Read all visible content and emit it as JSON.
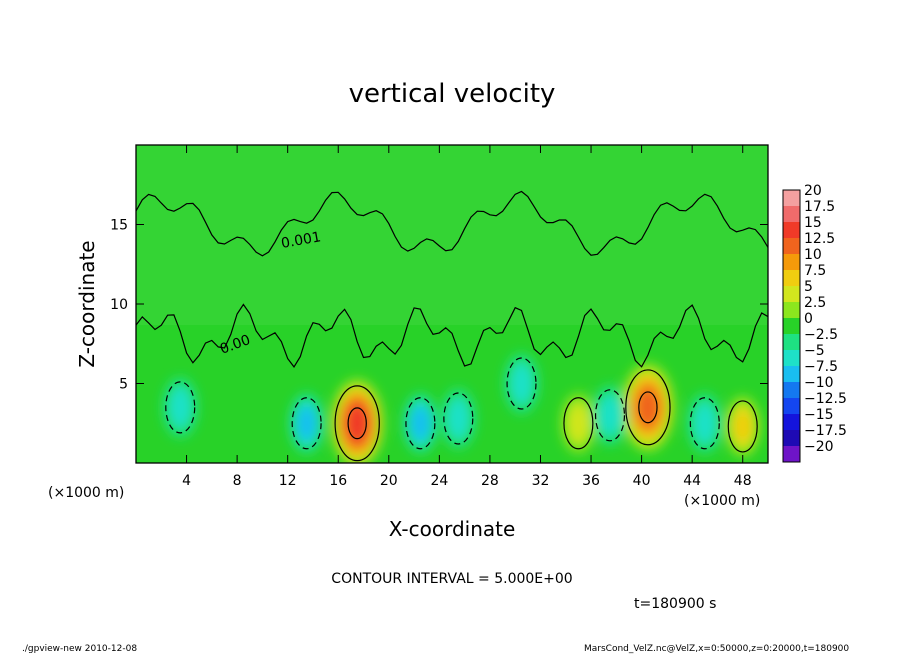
{
  "chart_data": {
    "type": "heatmap",
    "title": "vertical velocity",
    "xlabel": "X-coordinate",
    "ylabel": "Z-coordinate",
    "x_unit": "(×1000 m)",
    "y_unit": "(×1000 m)",
    "xlim": [
      0,
      50
    ],
    "ylim": [
      0,
      20
    ],
    "x_ticks": [
      "4",
      "8",
      "12",
      "16",
      "20",
      "24",
      "28",
      "32",
      "36",
      "40",
      "44",
      "48"
    ],
    "y_ticks": [
      "5",
      "10",
      "15"
    ],
    "contour_interval_text": "CONTOUR INTERVAL = 5.000E+00",
    "time_text": "t=180900 s",
    "contour_labels": [
      "0.001",
      "0.00"
    ],
    "colorbar": {
      "labels": [
        "20",
        "17.5",
        "15",
        "12.5",
        "10",
        "7.5",
        "5",
        "2.5",
        "0",
        "−2.5",
        "−5",
        "−7.5",
        "−10",
        "−12.5",
        "−15",
        "−17.5",
        "−20"
      ],
      "colors": [
        "#f4a0a0",
        "#f06b6b",
        "#f03a28",
        "#f0641e",
        "#f59a0a",
        "#f0cd10",
        "#d2e61e",
        "#8ce61e",
        "#28d228",
        "#1ee182",
        "#1ee1c8",
        "#19bef0",
        "#1478f0",
        "#1446f0",
        "#1414dc",
        "#1e0ab4",
        "#6e14c8"
      ]
    },
    "features": [
      {
        "x": 17.5,
        "z": 2.5,
        "value": 15
      },
      {
        "x": 40.5,
        "z": 3.5,
        "value": 12.5
      },
      {
        "x": 48.0,
        "z": 2.3,
        "value": 7.5
      },
      {
        "x": 35.0,
        "z": 2.5,
        "value": 5
      },
      {
        "x": 13.5,
        "z": 2.5,
        "value": -7.5
      },
      {
        "x": 22.5,
        "z": 2.5,
        "value": -7.5
      },
      {
        "x": 25.5,
        "z": 2.8,
        "value": -5
      },
      {
        "x": 3.5,
        "z": 3.5,
        "value": -5
      },
      {
        "x": 37.5,
        "z": 3.0,
        "value": -5
      },
      {
        "x": 30.5,
        "z": 5.0,
        "value": -5
      },
      {
        "x": 45.0,
        "z": 2.5,
        "value": -5
      }
    ]
  },
  "footer": {
    "left": "./gpview-new   2010-12-08",
    "right": "MarsCond_VelZ.nc@VelZ,x=0:50000,z=0:20000,t=180900"
  }
}
